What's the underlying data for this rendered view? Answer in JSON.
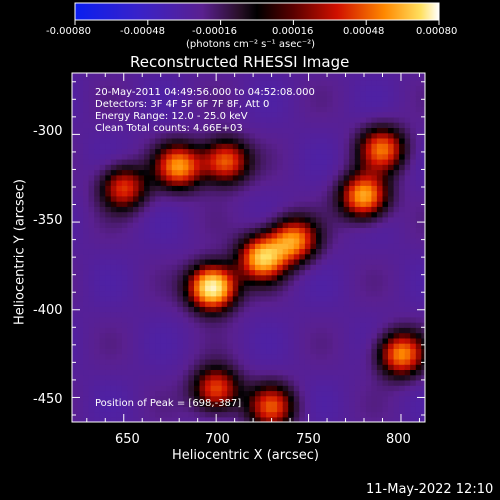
{
  "colorbar": {
    "tick_labels": [
      "-0.00080",
      "-0.00048",
      "-0.00016",
      "0.00016",
      "0.00048",
      "0.00080"
    ],
    "unit_label": "(photons cm⁻² s⁻¹ asec⁻²)",
    "range": [
      -0.0008,
      0.0008
    ]
  },
  "chart_data": {
    "type": "heatmap",
    "title": "Reconstructed RHESSI Image",
    "xlabel": "Heliocentric X (arcsec)",
    "ylabel": "Heliocentric Y (arcsec)",
    "xlim": [
      622,
      813
    ],
    "ylim": [
      -464,
      -265
    ],
    "x_ticks": [
      650,
      700,
      750,
      800
    ],
    "y_ticks": [
      -300,
      -350,
      -400,
      -450
    ],
    "info_lines": [
      "20-May-2011 04:49:56.000 to 04:52:08.000",
      "Detectors: 3F 4F 5F 6F 7F 8F, Att 0",
      "Energy Range: 12.0 - 25.0 keV",
      "Clean     Total counts: 4.66E+03"
    ],
    "peak_label": "Position of Peak = [698,-387]",
    "peak_position": [
      698,
      -387
    ],
    "sources": [
      {
        "x": 698,
        "y": -387,
        "intensity": 0.0008
      },
      {
        "x": 725,
        "y": -370,
        "intensity": 0.00056
      },
      {
        "x": 742,
        "y": -360,
        "intensity": 0.00044
      },
      {
        "x": 680,
        "y": -318,
        "intensity": 0.00044
      },
      {
        "x": 705,
        "y": -315,
        "intensity": 0.0004
      },
      {
        "x": 780,
        "y": -335,
        "intensity": 0.00052
      },
      {
        "x": 790,
        "y": -308,
        "intensity": 0.00036
      },
      {
        "x": 650,
        "y": -330,
        "intensity": 0.0003
      },
      {
        "x": 700,
        "y": -445,
        "intensity": 0.00036
      },
      {
        "x": 800,
        "y": -425,
        "intensity": 0.00044
      },
      {
        "x": 730,
        "y": -455,
        "intensity": 0.0003
      }
    ]
  },
  "footer": {
    "date": "11-May-2022 12:10"
  }
}
